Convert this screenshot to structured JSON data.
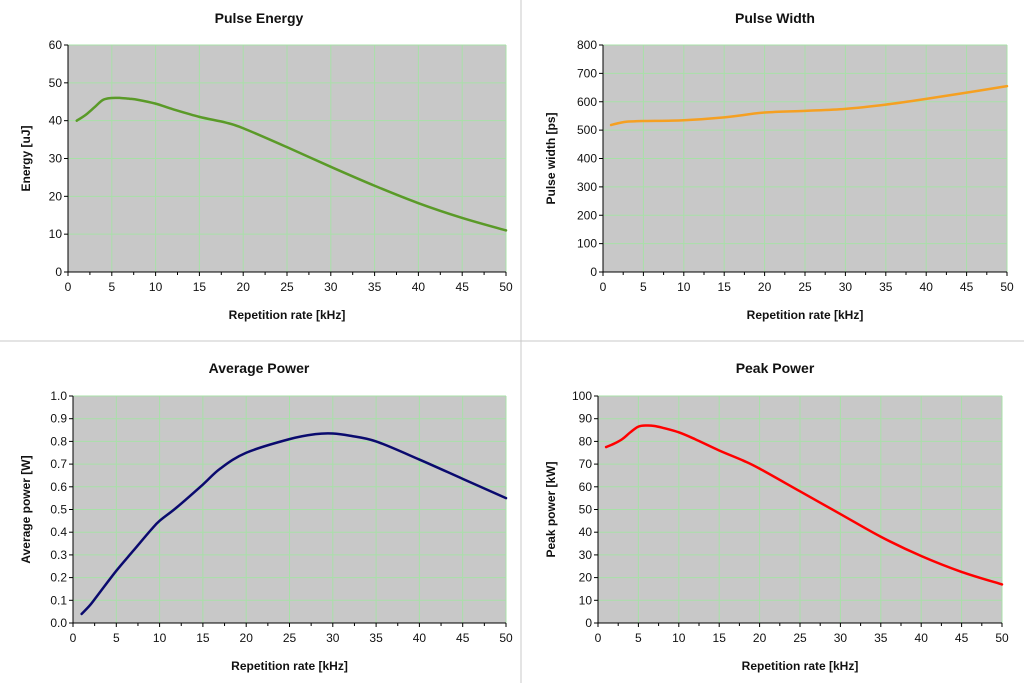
{
  "colors": {
    "plot_bg": "#c8c8c8",
    "grid": "#a8e0a8",
    "divider": "#c8c8c8",
    "axis": "#000000"
  },
  "chart_data": [
    {
      "id": "pulse-energy",
      "type": "line",
      "title": "Pulse Energy",
      "xlabel": "Repetition rate [kHz]",
      "ylabel": "Energy [uJ]",
      "xlim": [
        0,
        50
      ],
      "ylim": [
        0,
        60
      ],
      "xticks": [
        0,
        5,
        10,
        15,
        20,
        25,
        30,
        35,
        40,
        45,
        50
      ],
      "yticks": [
        0,
        10,
        20,
        30,
        40,
        50,
        60
      ],
      "xtick_labels": [
        "0",
        "5",
        "10",
        "15",
        "20",
        "25",
        "30",
        "35",
        "40",
        "45",
        "50"
      ],
      "ytick_labels": [
        "0",
        "10",
        "20",
        "30",
        "40",
        "50",
        "60"
      ],
      "color": "#5a9a28",
      "x": [
        1,
        2,
        3,
        4,
        5,
        6,
        7,
        8,
        10,
        12,
        15,
        18,
        20,
        25,
        30,
        35,
        40,
        45,
        50
      ],
      "y": [
        40,
        41.5,
        43.5,
        45.5,
        46,
        46,
        45.8,
        45.5,
        44.5,
        43,
        41,
        39.5,
        38,
        33,
        27.8,
        22.8,
        18.2,
        14.3,
        11
      ]
    },
    {
      "id": "pulse-width",
      "type": "line",
      "title": "Pulse Width",
      "xlabel": "Repetition rate [kHz]",
      "ylabel": "Pulse width [ps]",
      "xlim": [
        0,
        50
      ],
      "ylim": [
        0,
        800
      ],
      "xticks": [
        0,
        5,
        10,
        15,
        20,
        25,
        30,
        35,
        40,
        45,
        50
      ],
      "yticks": [
        0,
        100,
        200,
        300,
        400,
        500,
        600,
        700,
        800
      ],
      "xtick_labels": [
        "0",
        "5",
        "10",
        "15",
        "20",
        "25",
        "30",
        "35",
        "40",
        "45",
        "50"
      ],
      "ytick_labels": [
        "0",
        "100",
        "200",
        "300",
        "400",
        "500",
        "600",
        "700",
        "800"
      ],
      "color": "#f5a022",
      "x": [
        1,
        2,
        3,
        5,
        10,
        15,
        20,
        25,
        30,
        35,
        40,
        45,
        50
      ],
      "y": [
        518,
        525,
        530,
        532,
        535,
        545,
        562,
        568,
        575,
        590,
        610,
        632,
        655
      ]
    },
    {
      "id": "average-power",
      "type": "line",
      "title": "Average Power",
      "xlabel": "Repetition rate [kHz]",
      "ylabel": "Average power [W]",
      "xlim": [
        0,
        50
      ],
      "ylim": [
        0,
        1.0
      ],
      "xticks": [
        0,
        5,
        10,
        15,
        20,
        25,
        30,
        35,
        40,
        45,
        50
      ],
      "yticks": [
        0,
        0.1,
        0.2,
        0.3,
        0.4,
        0.5,
        0.6,
        0.7,
        0.8,
        0.9,
        1.0
      ],
      "xtick_labels": [
        "0",
        "5",
        "10",
        "15",
        "20",
        "25",
        "30",
        "35",
        "40",
        "45",
        "50"
      ],
      "ytick_labels": [
        "0.0",
        "0.1",
        "0.2",
        "0.3",
        "0.4",
        "0.5",
        "0.6",
        "0.7",
        "0.8",
        "0.9",
        "1.0"
      ],
      "color": "#0a0a6e",
      "x": [
        1,
        2,
        3,
        5,
        7,
        9,
        10,
        12,
        15,
        17,
        20,
        25,
        28,
        30,
        32,
        35,
        40,
        45,
        50
      ],
      "y": [
        0.04,
        0.08,
        0.13,
        0.23,
        0.32,
        0.41,
        0.45,
        0.51,
        0.61,
        0.68,
        0.75,
        0.81,
        0.832,
        0.835,
        0.825,
        0.8,
        0.72,
        0.635,
        0.55
      ]
    },
    {
      "id": "peak-power",
      "type": "line",
      "title": "Peak Power",
      "xlabel": "Repetition rate [kHz]",
      "ylabel": "Peak power [kW]",
      "xlim": [
        0,
        50
      ],
      "ylim": [
        0,
        100
      ],
      "xticks": [
        0,
        5,
        10,
        15,
        20,
        25,
        30,
        35,
        40,
        45,
        50
      ],
      "yticks": [
        0,
        10,
        20,
        30,
        40,
        50,
        60,
        70,
        80,
        90,
        100
      ],
      "xtick_labels": [
        "0",
        "5",
        "10",
        "15",
        "20",
        "25",
        "30",
        "35",
        "40",
        "45",
        "50"
      ],
      "ytick_labels": [
        "0",
        "10",
        "20",
        "30",
        "40",
        "50",
        "60",
        "70",
        "80",
        "90",
        "100"
      ],
      "color": "#ff0000",
      "x": [
        1,
        2,
        3,
        4,
        5,
        6,
        7,
        8,
        10,
        12,
        15,
        18,
        20,
        25,
        30,
        35,
        40,
        45,
        50
      ],
      "y": [
        77.5,
        79,
        81,
        84,
        86.5,
        87,
        86.8,
        86,
        84,
        81,
        76,
        71.5,
        68,
        58,
        48,
        38,
        29.5,
        22.5,
        17
      ]
    }
  ]
}
